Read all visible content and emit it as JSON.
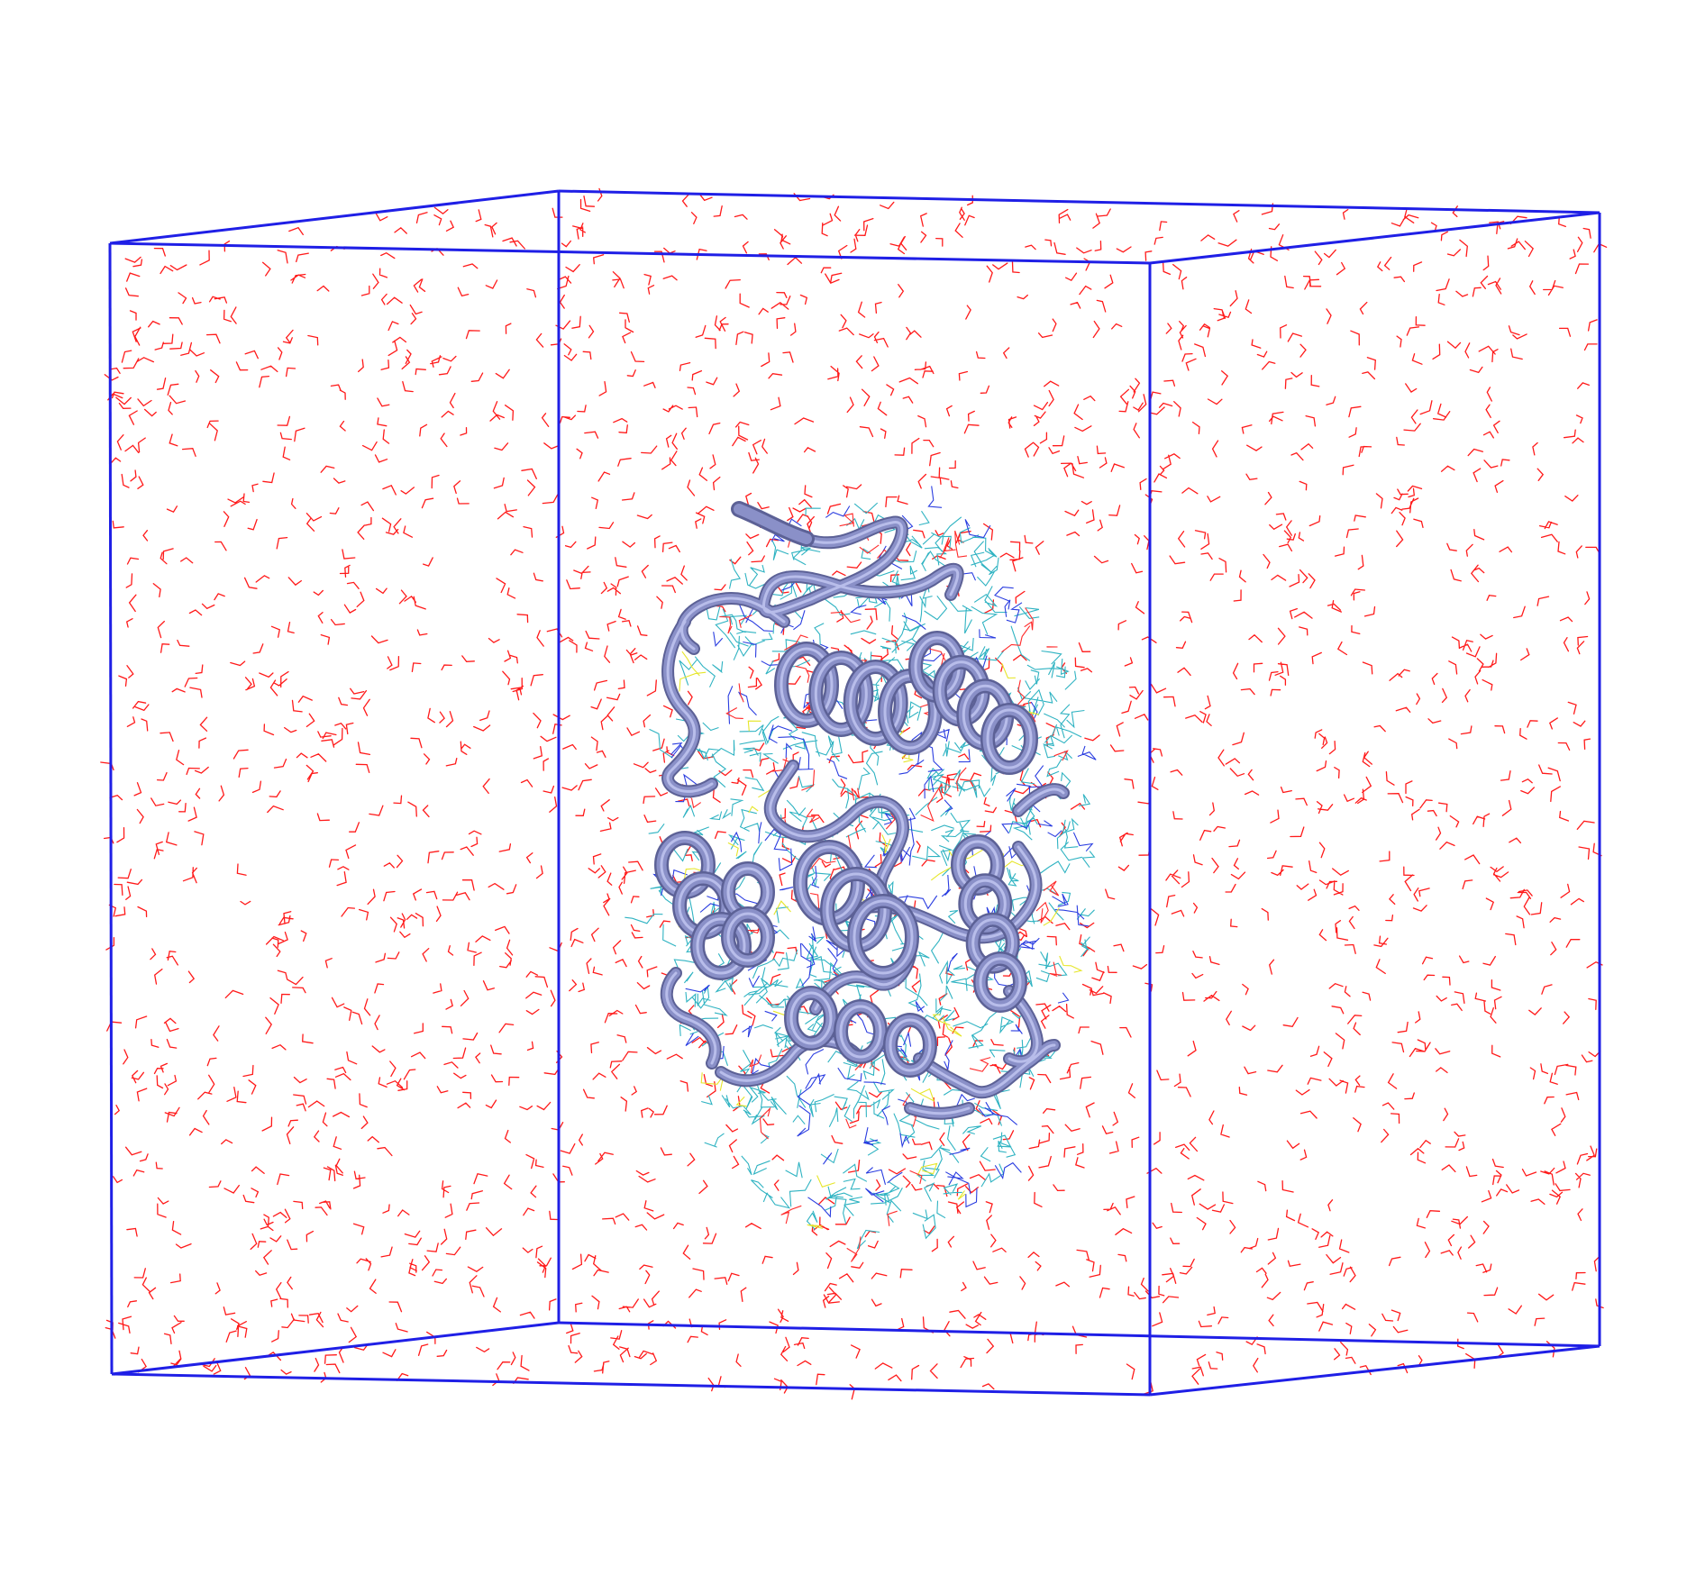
{
  "scene": {
    "background_color": "#ffffff",
    "box_color": "#1f1fe6",
    "water_color": "#ff1a1a",
    "protein_color": "#8a90c8",
    "protein_shade": "#5c6196",
    "protein_highlight": "#b8bdea",
    "sidechain_colors": [
      "#2fb3c2",
      "#2a3de0",
      "#e6e62a",
      "#ff2a2a"
    ],
    "representation": {
      "water": "lines",
      "protein": "new-cartoon",
      "sidechains": "lines",
      "box": "periodic-cell-wireframe"
    }
  }
}
